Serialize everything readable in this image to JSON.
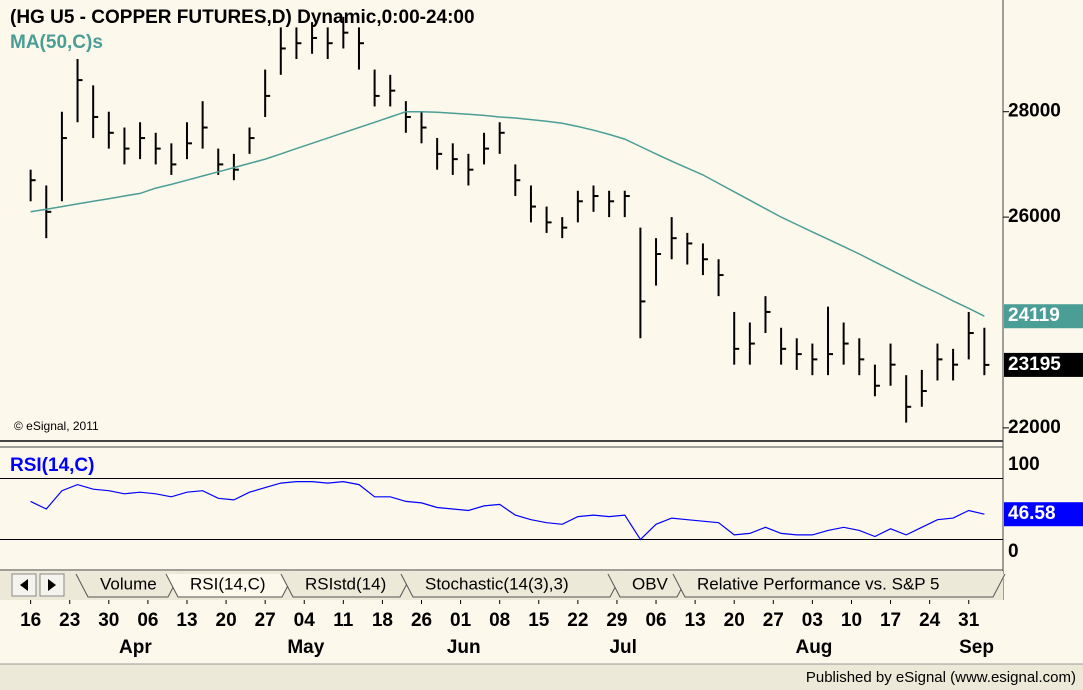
{
  "chart_data": [
    {
      "type": "ohlc",
      "title": "(HG U5 - COPPER FUTURES,D) Dynamic,0:00-24:00",
      "watermark": "© eSignal, 2011",
      "color": "#000000",
      "high": [
        26900,
        26600,
        28000,
        29000,
        28500,
        28000,
        27700,
        27800,
        27600,
        27400,
        27800,
        28200,
        27300,
        27200,
        27700,
        28800,
        29600,
        29600,
        29700,
        29600,
        29800,
        29600,
        28800,
        28700,
        28200,
        28000,
        27500,
        27400,
        27200,
        27600,
        27800,
        27000,
        26600,
        26200,
        26000,
        26500,
        26600,
        26500,
        26500,
        25800,
        25600,
        26000,
        25700,
        25500,
        25200,
        24200,
        24000,
        24500,
        23900,
        23700,
        23600,
        24300,
        24000,
        23700,
        23200,
        23600,
        23000,
        23100,
        23600,
        23500,
        24200,
        23900
      ],
      "low": [
        26300,
        25600,
        26300,
        27800,
        27500,
        27300,
        27000,
        27100,
        27000,
        26800,
        27100,
        27300,
        26800,
        26700,
        27200,
        27900,
        28700,
        29000,
        29100,
        29000,
        29200,
        28800,
        28100,
        28100,
        27600,
        27400,
        26900,
        26800,
        26600,
        27000,
        27200,
        26400,
        25900,
        25700,
        25600,
        25900,
        26100,
        26000,
        26000,
        23700,
        24700,
        25200,
        25100,
        24900,
        24500,
        23200,
        23200,
        23800,
        23200,
        23100,
        23000,
        23000,
        23200,
        23000,
        22600,
        22800,
        22100,
        22400,
        22900,
        22900,
        23300,
        23000
      ],
      "close": [
        26700,
        26100,
        27500,
        28600,
        27900,
        27600,
        27300,
        27500,
        27300,
        27000,
        27400,
        27700,
        27000,
        26900,
        27500,
        28300,
        29200,
        29300,
        29400,
        29300,
        29500,
        29300,
        28300,
        28400,
        27900,
        27700,
        27200,
        27100,
        26900,
        27300,
        27600,
        26700,
        26200,
        25900,
        25800,
        26300,
        26400,
        26300,
        26400,
        24400,
        25300,
        25600,
        25500,
        25200,
        24900,
        23500,
        23600,
        24200,
        23500,
        23400,
        23300,
        23400,
        23600,
        23300,
        22800,
        23200,
        22400,
        22700,
        23300,
        23200,
        23800,
        23195
      ],
      "overlay": {
        "name": "MA(50,C)s",
        "color": "#4a9e96",
        "values": [
          26100,
          26150,
          26200,
          26250,
          26300,
          26350,
          26400,
          26450,
          26550,
          26620,
          26700,
          26780,
          26860,
          26940,
          27020,
          27100,
          27200,
          27300,
          27400,
          27500,
          27600,
          27700,
          27800,
          27900,
          28000,
          28000,
          27990,
          27970,
          27950,
          27930,
          27900,
          27880,
          27850,
          27820,
          27780,
          27720,
          27650,
          27570,
          27480,
          27340,
          27200,
          27060,
          26930,
          26800,
          26640,
          26480,
          26320,
          26160,
          26000,
          25860,
          25720,
          25580,
          25440,
          25300,
          25150,
          25000,
          24850,
          24700,
          24560,
          24410,
          24270,
          24119
        ]
      },
      "ylim": [
        21770,
        30120
      ],
      "yticks": [
        22000,
        26000,
        28000
      ],
      "xlim": [
        -1,
        62
      ],
      "xticks": [
        {
          "value": 0,
          "label": "16"
        },
        {
          "value": 2.5,
          "label": "23"
        },
        {
          "value": 5,
          "label": "30"
        },
        {
          "value": 7.5,
          "label": "06"
        },
        {
          "value": 10,
          "label": "13"
        },
        {
          "value": 12.5,
          "label": "20"
        },
        {
          "value": 15,
          "label": "27"
        },
        {
          "value": 17.5,
          "label": "04"
        },
        {
          "value": 20,
          "label": "11"
        },
        {
          "value": 22.5,
          "label": "18"
        },
        {
          "value": 25,
          "label": "26"
        },
        {
          "value": 27.5,
          "label": "01"
        },
        {
          "value": 30,
          "label": "08"
        },
        {
          "value": 32.5,
          "label": "15"
        },
        {
          "value": 35,
          "label": "22"
        },
        {
          "value": 37.5,
          "label": "29"
        },
        {
          "value": 40,
          "label": "06"
        },
        {
          "value": 42.5,
          "label": "13"
        },
        {
          "value": 45,
          "label": "20"
        },
        {
          "value": 47.5,
          "label": "27"
        },
        {
          "value": 50,
          "label": "03"
        },
        {
          "value": 52.5,
          "label": "10"
        },
        {
          "value": 55,
          "label": "17"
        },
        {
          "value": 57.5,
          "label": "24"
        },
        {
          "value": 60,
          "label": "31"
        }
      ],
      "month_ticks": [
        {
          "value": 6.7,
          "label": "Apr"
        },
        {
          "value": 17.6,
          "label": "May"
        },
        {
          "value": 27.7,
          "label": "Jun"
        },
        {
          "value": 37.9,
          "label": "Jul"
        },
        {
          "value": 50.1,
          "label": "Aug"
        },
        {
          "value": 60.5,
          "label": "Sep"
        }
      ]
    },
    {
      "type": "line",
      "series": [
        {
          "name": "RSI(14,C)",
          "color": "#0000ff",
          "values": [
            55,
            50,
            62,
            66,
            63,
            62,
            60,
            61,
            60,
            58,
            61,
            62,
            57,
            56,
            61,
            64,
            67,
            68,
            68,
            67,
            68,
            66,
            58,
            58,
            55,
            54,
            51,
            50,
            49,
            52,
            53,
            46,
            43,
            41,
            40,
            45,
            46,
            45,
            46,
            30,
            40,
            44,
            43,
            42,
            41,
            33,
            34,
            38,
            34,
            33,
            33,
            36,
            38,
            36,
            32,
            37,
            33,
            38,
            43,
            44,
            49,
            46.58
          ]
        }
      ],
      "ylim": [
        10,
        90
      ],
      "levels": [
        30,
        70
      ],
      "scale_labels": [
        "100",
        "0"
      ]
    }
  ],
  "tabs": [
    "Volume",
    "RSI(14,C)",
    "RSIstd(14)",
    "Stochastic(14(3),3)",
    "OBV",
    "Relative Performance vs. S&P 5"
  ],
  "footer": "Published by eSignal (www.esignal.com)"
}
